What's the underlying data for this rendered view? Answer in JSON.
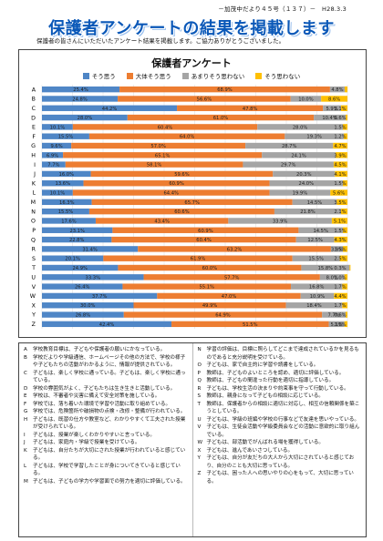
{
  "header": {
    "text": "－加茂中だより４５号（１３７）－　H28.3.3"
  },
  "title": "保護者アンケートの結果を掲載します",
  "intro": "保護者の皆さんにいただいたアンケート結果を掲載します。ご協力ありがとうございました。",
  "chart_data": {
    "type": "bar",
    "orientation": "horizontal",
    "stacked": true,
    "title": "保護者アンケート",
    "legend_position": "top",
    "categories": [
      "A",
      "B",
      "C",
      "D",
      "E",
      "F",
      "G",
      "H",
      "I",
      "J",
      "K",
      "L",
      "M",
      "N",
      "O",
      "P",
      "Q",
      "R",
      "S",
      "T",
      "U",
      "V",
      "W",
      "X",
      "Y",
      "Z"
    ],
    "series": [
      {
        "name": "そう思う",
        "color": "#4f86c6",
        "values": [
          25.4,
          24.8,
          44.2,
          28.0,
          10.1,
          15.5,
          9.6,
          6.9,
          7.7,
          16.0,
          13.6,
          10.1,
          16.3,
          15.5,
          17.6,
          23.1,
          22.8,
          31.4,
          20.1,
          24.9,
          33.3,
          26.4,
          37.7,
          30.0,
          26.8,
          42.4
        ]
      },
      {
        "name": "大体そう思う",
        "color": "#ed7d31",
        "values": [
          68.9,
          56.6,
          47.8,
          61.0,
          60.4,
          64.0,
          57.0,
          65.1,
          58.1,
          59.6,
          60.9,
          64.4,
          65.7,
          60.6,
          43.4,
          60.9,
          60.4,
          63.2,
          61.9,
          60.0,
          57.7,
          55.1,
          47.0,
          49.9,
          64.9,
          51.5
        ]
      },
      {
        "name": "あまりそう思わない",
        "color": "#a5a5a5",
        "values": [
          4.8,
          10.0,
          5.9,
          10.4,
          28.0,
          19.3,
          28.7,
          24.1,
          29.7,
          20.3,
          24.0,
          19.9,
          14.5,
          21.8,
          33.9,
          14.5,
          12.5,
          3.9,
          15.5,
          15.8,
          8.0,
          16.8,
          10.9,
          18.4,
          7.7,
          5.1
        ]
      },
      {
        "name": "そう思わない",
        "color": "#ffc000",
        "values": [
          0.9,
          8.6,
          2.1,
          0.6,
          1.5,
          1.2,
          4.7,
          3.9,
          4.5,
          4.1,
          1.5,
          5.6,
          3.5,
          2.1,
          5.1,
          1.5,
          4.3,
          1.5,
          2.5,
          0.3,
          1.0,
          1.7,
          4.4,
          1.7,
          0.6,
          1.0
        ]
      }
    ],
    "xlim": [
      0,
      100
    ],
    "value_labels": [
      [
        "25.4%",
        "68.9%",
        "4.8%",
        ""
      ],
      [
        "24.8%",
        "56.6%",
        "10.0%",
        "8.6%"
      ],
      [
        "44.2%",
        "47.8%",
        "5.9%",
        "2.1%"
      ],
      [
        "28.0%",
        "61.0%",
        "10.4%",
        "0.6%"
      ],
      [
        "10.1%",
        "60.4%",
        "28.0%",
        "1.5%"
      ],
      [
        "15.5%",
        "64.0%",
        "19.3%",
        "1.2%"
      ],
      [
        "9.6%",
        "57.0%",
        "28.7%",
        "4.7%"
      ],
      [
        "6.9%",
        "65.1%",
        "24.1%",
        "3.9%"
      ],
      [
        "7.7%",
        "58.1%",
        "29.7%",
        "4.5%"
      ],
      [
        "16.0%",
        "59.6%",
        "20.3%",
        "4.1%"
      ],
      [
        "13.6%",
        "60.9%",
        "24.0%",
        "1.5%"
      ],
      [
        "10.1%",
        "64.4%",
        "19.9%",
        "5.6%"
      ],
      [
        "16.3%",
        "65.7%",
        "14.5%",
        "3.5%"
      ],
      [
        "15.5%",
        "60.6%",
        "21.8%",
        "2.1%"
      ],
      [
        "17.6%",
        "43.4%",
        "33.9%",
        "5.1%"
      ],
      [
        "23.1%",
        "60.9%",
        "14.5%",
        "1.5%"
      ],
      [
        "22.8%",
        "60.4%",
        "12.5%",
        "4.3%"
      ],
      [
        "31.4%",
        "63.2%",
        "3.9%",
        "1.5%"
      ],
      [
        "20.1%",
        "61.9%",
        "15.5%",
        "2.5%"
      ],
      [
        "24.9%",
        "60.0%",
        "15.8%",
        "0.3%"
      ],
      [
        "33.3%",
        "57.7%",
        "8.0%",
        "1.0%"
      ],
      [
        "26.4%",
        "55.1%",
        "16.8%",
        "1.7%"
      ],
      [
        "37.7%",
        "47.0%",
        "10.9%",
        "4.4%"
      ],
      [
        "30.0%",
        "49.9%",
        "18.4%",
        "1.7%"
      ],
      [
        "26.8%",
        "64.9%",
        "7.7%",
        "0.6%"
      ],
      [
        "42.4%",
        "51.5%",
        "5.1%",
        "1.0%"
      ]
    ]
  },
  "notes_left": [
    {
      "letter": "A",
      "text": "学校教育目標は、子どもや保護者の願いにかなっている。"
    },
    {
      "letter": "B",
      "text": "学校だよりや学級通信、ホームページその他の方法で、学校の様子や子どもたちの活動がわかるように、情報が提供されている。"
    },
    {
      "letter": "C",
      "text": "子どもは、楽しく学校に通っている。子どもは、楽しく学校に通っている。"
    },
    {
      "letter": "D",
      "text": "学校の雰囲気がよく、子どもたちは生き生きと活動している。"
    },
    {
      "letter": "E",
      "text": "学校は、不審者や災害に備えて安全対策を施している。"
    },
    {
      "letter": "F",
      "text": "学校では、落ち着いた環境で学習や活動に取り組めている。"
    },
    {
      "letter": "G",
      "text": "学校では、危険箇所や破損物の点検・改修・整備が行われている。"
    },
    {
      "letter": "H",
      "text": "子どもは、既習の仕方や教室など、わかりやすくて工夫された授業が受けられている。"
    },
    {
      "letter": "I",
      "text": "子どもは、授業が楽しくわかりやすいと言っている。"
    },
    {
      "letter": "J",
      "text": "子どもは、家庭内・学級で授業を受けている。"
    },
    {
      "letter": "K",
      "text": "子どもは、自分たちが大切にされた授業が行われていると感じている。"
    },
    {
      "letter": "L",
      "text": "子どもは、学校で学習したことが身についてきていると感じている。"
    },
    {
      "letter": "M",
      "text": "子どもは、子どもの学力や学習面での努力を適切に評価している。"
    }
  ],
  "notes_right": [
    {
      "letter": "N",
      "text": "学習の評価は、目標に照らしてどこまで達成されているかを見るものであると充分説明を受けている。"
    },
    {
      "letter": "O",
      "text": "子どもは、家で自主的に学習や読書をしている。"
    },
    {
      "letter": "P",
      "text": "教師は、子どものよいところを認め、適切に評価している。"
    },
    {
      "letter": "Q",
      "text": "教師は、子どもの間違った行動を適切に指導している。"
    },
    {
      "letter": "R",
      "text": "子どもは、学校生活の決まりや約束事を守って行動している。"
    },
    {
      "letter": "S",
      "text": "教師は、親身になって子どもの相談に応じている。"
    },
    {
      "letter": "T",
      "text": "教師は、保護者からの相談に適切に対応し、相互の信頼関係を築こうとしている。"
    },
    {
      "letter": "U",
      "text": "子どもは、学級の班編や学校の行事などで友達を思いやっている。"
    },
    {
      "letter": "V",
      "text": "子どもは、生徒会活動や学級委員会などの活動に意欲的に取り組んでいる。"
    },
    {
      "letter": "W",
      "text": "子どもは、部活動でがんばれる場を獲得している。"
    },
    {
      "letter": "X",
      "text": "子どもは、進んであいさつしている。"
    },
    {
      "letter": "Y",
      "text": "子どもは、自分が友だちの大人から大切にされていると感じており、自分のことも大切に思っている。"
    },
    {
      "letter": "Z",
      "text": "子どもは、困った人への思いやりの心をもって、大切に思っている。"
    }
  ]
}
